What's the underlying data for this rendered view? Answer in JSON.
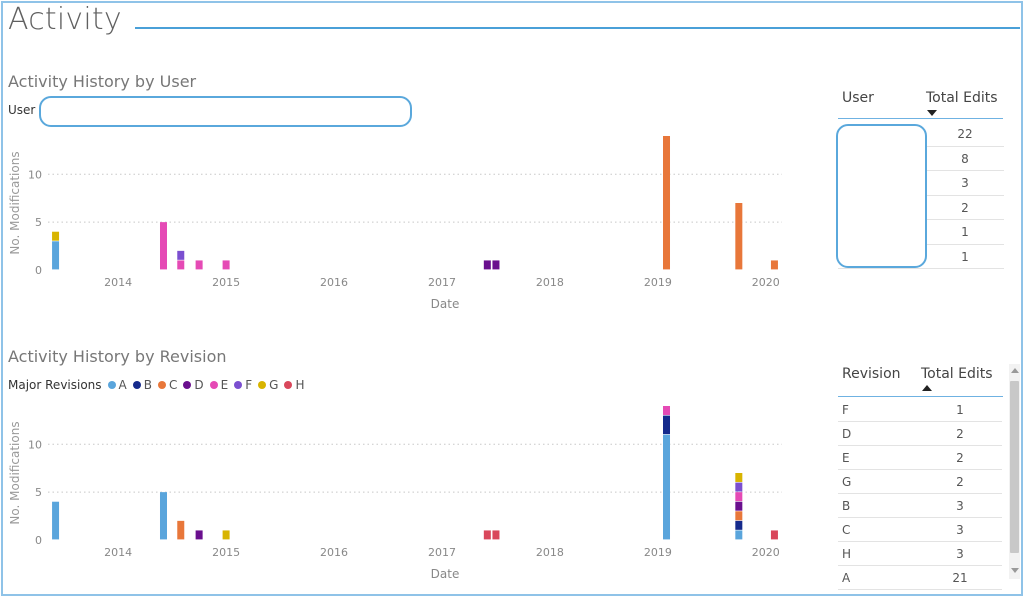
{
  "header": {
    "title": "Activity"
  },
  "colors": {
    "A": "#5aa5dc",
    "B": "#152a8c",
    "C": "#e8773a",
    "D": "#6a0f8e",
    "E": "#e54ab5",
    "F": "#7b4fd0",
    "G": "#d8b400",
    "H": "#d9475b",
    "accent": "#4aa0d8"
  },
  "user_section": {
    "title": "Activity History by User",
    "slicer_label": "User",
    "slicer_value": "",
    "table": {
      "col_user": "User",
      "col_total": "Total Edits",
      "sort": "descending",
      "rows": [
        {
          "user": "",
          "total": "22"
        },
        {
          "user": "",
          "total": "8"
        },
        {
          "user": "",
          "total": "3"
        },
        {
          "user": "",
          "total": "2"
        },
        {
          "user": "",
          "total": "1"
        },
        {
          "user": "",
          "total": "1"
        }
      ]
    }
  },
  "revision_section": {
    "title": "Activity History by Revision",
    "legend_title": "Major Revisions",
    "legend": [
      {
        "name": "A",
        "color_key": "A"
      },
      {
        "name": "B",
        "color_key": "B"
      },
      {
        "name": "C",
        "color_key": "C"
      },
      {
        "name": "D",
        "color_key": "D"
      },
      {
        "name": "E",
        "color_key": "E"
      },
      {
        "name": "F",
        "color_key": "F"
      },
      {
        "name": "G",
        "color_key": "G"
      },
      {
        "name": "H",
        "color_key": "H"
      }
    ],
    "table": {
      "col_revision": "Revision",
      "col_total": "Total Edits",
      "sort": "ascending",
      "rows": [
        {
          "revision": "F",
          "total": "1"
        },
        {
          "revision": "D",
          "total": "2"
        },
        {
          "revision": "E",
          "total": "2"
        },
        {
          "revision": "G",
          "total": "2"
        },
        {
          "revision": "B",
          "total": "3"
        },
        {
          "revision": "C",
          "total": "3"
        },
        {
          "revision": "H",
          "total": "3"
        },
        {
          "revision": "A",
          "total": "21"
        }
      ]
    }
  },
  "chart_data": [
    {
      "type": "bar",
      "stacked": true,
      "xlabel": "Date",
      "ylabel": "No. Modifications",
      "x_ticks": [
        "2014",
        "2015",
        "2016",
        "2017",
        "2018",
        "2019",
        "2020"
      ],
      "x_range": [
        2013.35,
        2020.15
      ],
      "y_ticks": [
        "0",
        "5",
        "10"
      ],
      "ylim": [
        0,
        14
      ],
      "grid": true,
      "bars": [
        {
          "x": 2013.42,
          "stack": [
            {
              "color_key": "A",
              "value": 3
            },
            {
              "color_key": "G",
              "value": 1
            }
          ]
        },
        {
          "x": 2014.42,
          "stack": [
            {
              "color_key": "E",
              "value": 5
            }
          ]
        },
        {
          "x": 2014.58,
          "stack": [
            {
              "color_key": "E",
              "value": 1
            },
            {
              "color_key": "F",
              "value": 1
            }
          ]
        },
        {
          "x": 2014.75,
          "stack": [
            {
              "color_key": "E",
              "value": 1
            }
          ]
        },
        {
          "x": 2015.0,
          "stack": [
            {
              "color_key": "E",
              "value": 1
            }
          ]
        },
        {
          "x": 2017.42,
          "stack": [
            {
              "color_key": "D",
              "value": 1
            }
          ]
        },
        {
          "x": 2017.5,
          "stack": [
            {
              "color_key": "D",
              "value": 1
            }
          ]
        },
        {
          "x": 2019.08,
          "stack": [
            {
              "color_key": "C",
              "value": 14
            }
          ]
        },
        {
          "x": 2019.75,
          "stack": [
            {
              "color_key": "C",
              "value": 7
            }
          ]
        },
        {
          "x": 2020.08,
          "stack": [
            {
              "color_key": "C",
              "value": 1
            }
          ]
        }
      ]
    },
    {
      "type": "bar",
      "stacked": true,
      "xlabel": "Date",
      "ylabel": "No. Modifications",
      "x_ticks": [
        "2014",
        "2015",
        "2016",
        "2017",
        "2018",
        "2019",
        "2020"
      ],
      "x_range": [
        2013.35,
        2020.15
      ],
      "y_ticks": [
        "0",
        "5",
        "10"
      ],
      "ylim": [
        0,
        14
      ],
      "grid": true,
      "bars": [
        {
          "x": 2013.42,
          "stack": [
            {
              "color_key": "A",
              "value": 4
            }
          ]
        },
        {
          "x": 2014.42,
          "stack": [
            {
              "color_key": "A",
              "value": 5
            }
          ]
        },
        {
          "x": 2014.58,
          "stack": [
            {
              "color_key": "C",
              "value": 2
            }
          ]
        },
        {
          "x": 2014.75,
          "stack": [
            {
              "color_key": "D",
              "value": 1
            }
          ]
        },
        {
          "x": 2015.0,
          "stack": [
            {
              "color_key": "G",
              "value": 1
            }
          ]
        },
        {
          "x": 2017.42,
          "stack": [
            {
              "color_key": "H",
              "value": 1
            }
          ]
        },
        {
          "x": 2017.5,
          "stack": [
            {
              "color_key": "H",
              "value": 1
            }
          ]
        },
        {
          "x": 2019.08,
          "stack": [
            {
              "color_key": "A",
              "value": 11
            },
            {
              "color_key": "B",
              "value": 2
            },
            {
              "color_key": "E",
              "value": 1
            }
          ]
        },
        {
          "x": 2019.75,
          "stack": [
            {
              "color_key": "A",
              "value": 1
            },
            {
              "color_key": "B",
              "value": 1
            },
            {
              "color_key": "C",
              "value": 1
            },
            {
              "color_key": "D",
              "value": 1
            },
            {
              "color_key": "E",
              "value": 1
            },
            {
              "color_key": "F",
              "value": 1
            },
            {
              "color_key": "G",
              "value": 1
            }
          ]
        },
        {
          "x": 2020.08,
          "stack": [
            {
              "color_key": "H",
              "value": 1
            }
          ]
        }
      ]
    }
  ]
}
